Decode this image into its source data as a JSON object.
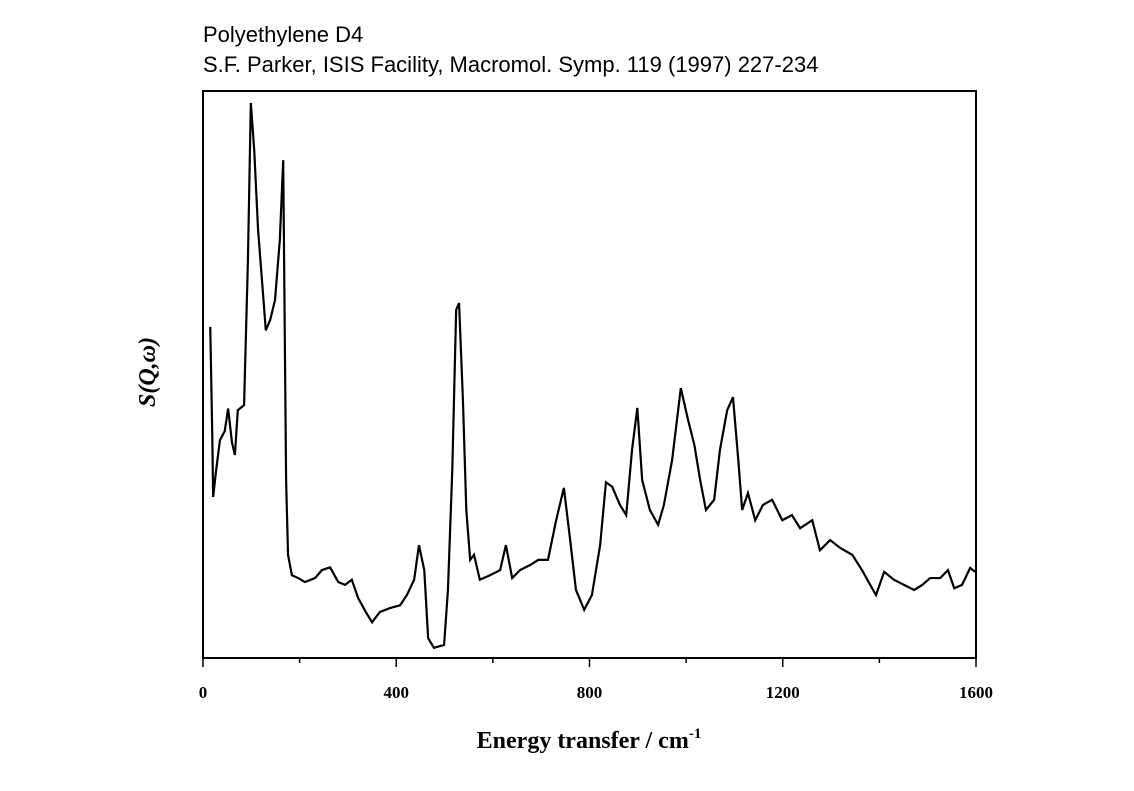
{
  "chart_data": {
    "type": "line",
    "title": "Polyethylene D4",
    "subtitle": "S.F. Parker, ISIS Facility, Macromol. Symp. 119 (1997) 227-234",
    "x_label": "Energy transfer / cm",
    "x_label_sup": "-1",
    "y_label": "S(Q,ω)",
    "xlim": [
      0,
      1600
    ],
    "xticks": [
      0,
      400,
      800,
      1200,
      1600
    ],
    "xminorticks": [
      200,
      600,
      1000,
      1400
    ],
    "ylim": [
      0,
      100
    ],
    "color": "#000000",
    "x": [
      15,
      19,
      21,
      27,
      35,
      45,
      52,
      60,
      66,
      72,
      85,
      93,
      99,
      106,
      114,
      122,
      130,
      139,
      149,
      159,
      166,
      172,
      176,
      184,
      197,
      211,
      232,
      246,
      263,
      280,
      294,
      308,
      321,
      337,
      350,
      366,
      387,
      408,
      422,
      437,
      447,
      458,
      466,
      478,
      499,
      507,
      516,
      524,
      530,
      538,
      545,
      553,
      561,
      573,
      594,
      615,
      627,
      640,
      656,
      677,
      694,
      714,
      731,
      747,
      760,
      772,
      789,
      805,
      822,
      834,
      847,
      863,
      876,
      888,
      899,
      909,
      925,
      942,
      954,
      971,
      989,
      1004,
      1017,
      1029,
      1041,
      1058,
      1070,
      1085,
      1097,
      1108,
      1116,
      1128,
      1143,
      1159,
      1178,
      1199,
      1219,
      1236,
      1261,
      1277,
      1298,
      1319,
      1344,
      1364,
      1381,
      1393,
      1410,
      1430,
      1451,
      1472,
      1489,
      1505,
      1526,
      1542,
      1555,
      1571,
      1588,
      1598
    ],
    "values": [
      58.4,
      40.2,
      28.4,
      33,
      38.4,
      40,
      44,
      38,
      35.8,
      43.7,
      44.6,
      70.2,
      97.9,
      89.6,
      75.5,
      66.7,
      57.8,
      59.6,
      63.1,
      73.7,
      87.8,
      31.4,
      18.2,
      14.6,
      14.1,
      13.4,
      14.1,
      15.5,
      16,
      13.4,
      12.9,
      13.8,
      10.6,
      8.1,
      6.3,
      8.1,
      8.8,
      9.3,
      11.1,
      13.8,
      19.9,
      15.5,
      3.5,
      1.8,
      2.3,
      12,
      33.2,
      61.4,
      62.6,
      45.5,
      26.1,
      17.3,
      18.2,
      13.8,
      14.6,
      15.5,
      19.9,
      14.1,
      15.5,
      16.4,
      17.3,
      17.3,
      24.3,
      30,
      20.8,
      12,
      8.5,
      11.1,
      19.9,
      31,
      30.2,
      27,
      25.2,
      36.7,
      44.1,
      31.4,
      26.1,
      23.5,
      27,
      34.9,
      47.6,
      42,
      37.6,
      31.4,
      26.1,
      27.9,
      36.7,
      43.7,
      46,
      34.9,
      26.1,
      29.1,
      24.3,
      27,
      27.9,
      24.3,
      25.2,
      22.9,
      24.3,
      19,
      20.8,
      19.4,
      18.2,
      15.5,
      12.9,
      11.1,
      15.2,
      13.8,
      12.9,
      12,
      12.9,
      14.1,
      14.1,
      15.5,
      12.3,
      12.9,
      15.9,
      15.2
    ]
  }
}
